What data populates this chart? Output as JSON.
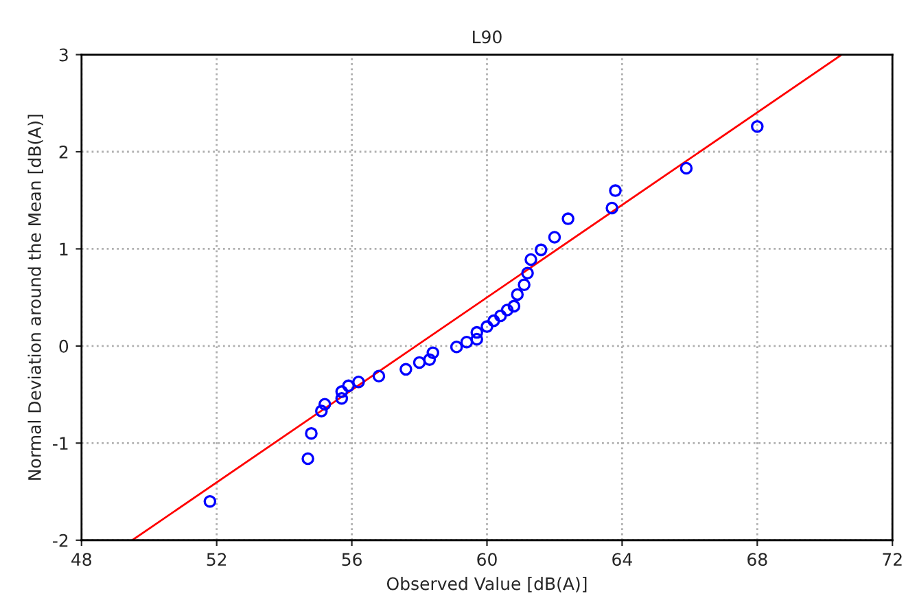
{
  "chart_data": {
    "type": "scatter",
    "title": "L90",
    "xlabel": "Observed Value [dB(A)]",
    "ylabel": "Normal Deviation around the Mean [dB(A)]",
    "xlim": [
      48,
      72
    ],
    "xticks": [
      48,
      52,
      56,
      60,
      64,
      68,
      72
    ],
    "ylim": [
      -2,
      3
    ],
    "yticks": [
      -2,
      -1,
      0,
      1,
      2,
      3
    ],
    "grid": true,
    "series": [
      {
        "marker": "circle",
        "color": "#0000ff",
        "x": [
          51.8,
          54.7,
          54.8,
          55.1,
          55.2,
          55.7,
          55.7,
          55.9,
          56.2,
          56.8,
          57.6,
          58.0,
          58.3,
          58.4,
          59.1,
          59.4,
          59.7,
          59.7,
          60.0,
          60.2,
          60.4,
          60.6,
          60.8,
          60.9,
          61.1,
          61.2,
          61.3,
          61.6,
          62.0,
          62.4,
          63.7,
          63.8,
          65.9,
          68.0
        ],
        "values": [
          -1.6,
          -1.16,
          -0.9,
          -0.67,
          -0.6,
          -0.54,
          -0.47,
          -0.41,
          -0.37,
          -0.31,
          -0.24,
          -0.17,
          -0.14,
          -0.07,
          -0.01,
          0.04,
          0.07,
          0.14,
          0.2,
          0.26,
          0.31,
          0.37,
          0.41,
          0.53,
          0.63,
          0.75,
          0.89,
          0.99,
          1.12,
          1.31,
          1.42,
          1.6,
          1.83,
          2.26
        ]
      },
      {
        "type": "line",
        "marker": "none",
        "color": "#ff0000",
        "x": [
          49.5,
          70.5
        ],
        "values": [
          -2,
          3
        ]
      }
    ]
  }
}
